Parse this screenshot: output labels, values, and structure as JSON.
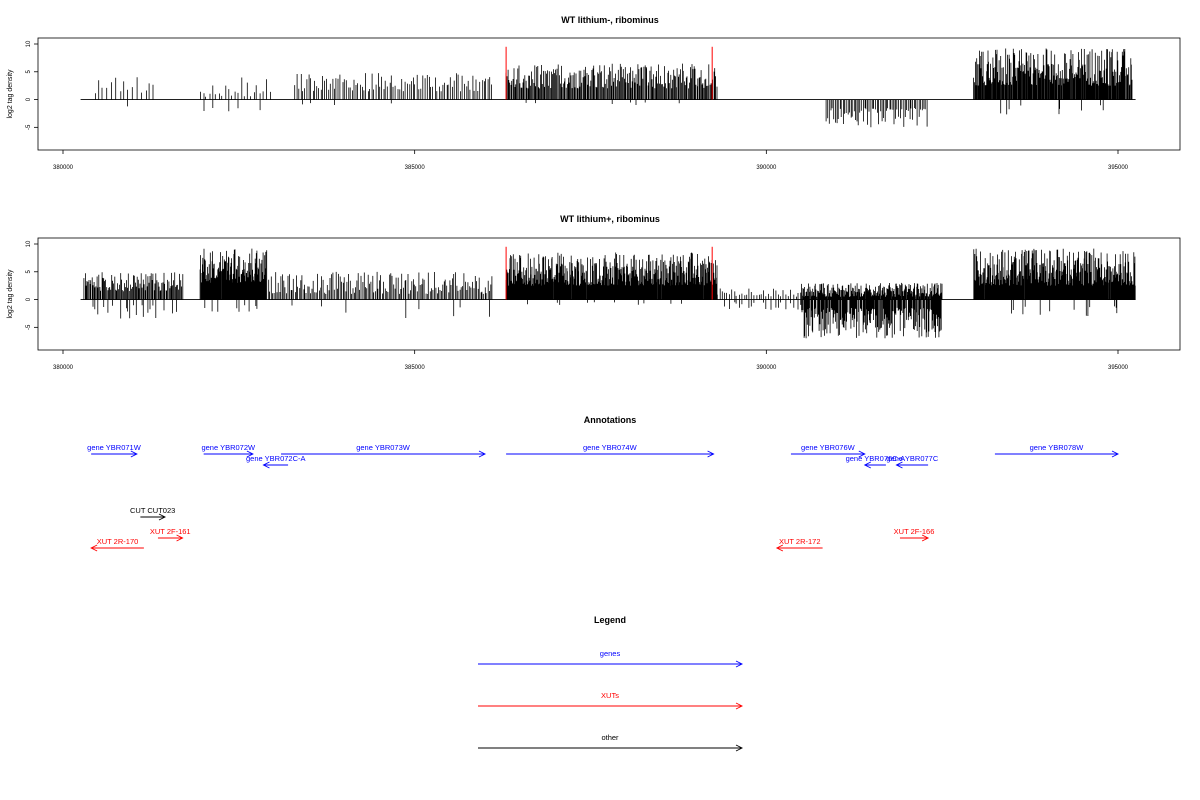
{
  "chart_data": [
    {
      "type": "bar",
      "title": "WT lithium-, ribominus",
      "ylabel": "log2 tag density",
      "xlim": [
        379500,
        395800
      ],
      "ylim": [
        -8,
        10
      ],
      "x_ticks": [
        380000,
        385000,
        390000,
        395000
      ],
      "x_tick_labels": [
        "380000",
        "385000",
        "390000",
        "395000"
      ],
      "y_ticks": [
        -5,
        0,
        5,
        10
      ],
      "y_tick_labels": [
        "-5",
        "0",
        "5",
        "10"
      ],
      "baseline": [
        380250,
        395250
      ],
      "marker_lines": {
        "color": "#ff0000",
        "x": [
          386300,
          389230
        ],
        "y": [
          0,
          9.5
        ]
      },
      "segments": [
        {
          "x": [
            380450,
            381300
          ],
          "pos": [
            0.5,
            4.5
          ],
          "neg": [
            -1,
            -3.5
          ],
          "neg_p": 0.15,
          "step": 60
        },
        {
          "x": [
            381950,
            382950
          ],
          "pos": [
            0.5,
            4
          ],
          "neg": [
            -1,
            -3
          ],
          "neg_p": 0.2,
          "step": 45
        },
        {
          "x": [
            383300,
            386100
          ],
          "pos": [
            1.5,
            4.8
          ],
          "neg": [
            -0.5,
            -1
          ],
          "neg_p": 0.02,
          "step": 28
        },
        {
          "x": [
            386300,
            389300
          ],
          "pos": [
            2,
            6.5
          ],
          "neg": [
            -0.5,
            -1
          ],
          "neg_p": 0.02,
          "step": 14
        },
        {
          "x": [
            390850,
            392300
          ],
          "pos": [
            0,
            0
          ],
          "neg": [
            -1.5,
            -5
          ],
          "neg_p": 1,
          "step": 22
        },
        {
          "x": [
            392950,
            395200
          ],
          "pos": [
            2.5,
            9.2
          ],
          "neg": [
            -1,
            -3
          ],
          "neg_p": 0.03,
          "step": 10
        }
      ]
    },
    {
      "type": "bar",
      "title": "WT lithium+, ribominus",
      "ylabel": "log2 tag density",
      "xlim": [
        379500,
        395800
      ],
      "ylim": [
        -8,
        10
      ],
      "x_ticks": [
        380000,
        385000,
        390000,
        395000
      ],
      "x_tick_labels": [
        "380000",
        "385000",
        "390000",
        "395000"
      ],
      "y_ticks": [
        -5,
        0,
        5,
        10
      ],
      "y_tick_labels": [
        "-5",
        "0",
        "5",
        "10"
      ],
      "baseline": [
        380250,
        395250
      ],
      "marker_lines": {
        "color": "#ff0000",
        "x": [
          386300,
          389230
        ],
        "y": [
          0,
          9.5
        ]
      },
      "segments": [
        {
          "x": [
            380300,
            381700
          ],
          "pos": [
            1.5,
            5
          ],
          "neg": [
            -1,
            -3.5
          ],
          "neg_p": 0.3,
          "step": 14
        },
        {
          "x": [
            381950,
            382900
          ],
          "pos": [
            3,
            9.2
          ],
          "neg": [
            -1,
            -2.5
          ],
          "neg_p": 0.05,
          "step": 8
        },
        {
          "x": [
            382900,
            386100
          ],
          "pos": [
            1,
            5
          ],
          "neg": [
            -1,
            -3.5
          ],
          "neg_p": 0.05,
          "step": 20
        },
        {
          "x": [
            386300,
            389300
          ],
          "pos": [
            2.5,
            8.5
          ],
          "neg": [
            -0.5,
            -1
          ],
          "neg_p": 0.02,
          "step": 8
        },
        {
          "x": [
            389300,
            390500
          ],
          "pos": [
            0.5,
            2
          ],
          "neg": [
            -0.5,
            -2
          ],
          "neg_p": 0.5,
          "step": 35
        },
        {
          "x": [
            390500,
            392500
          ],
          "pos": [
            0.5,
            3
          ],
          "neg": [
            -1.5,
            -7
          ],
          "neg_p": 0.85,
          "step": 9
        },
        {
          "x": [
            392950,
            395250
          ],
          "pos": [
            2.5,
            9.2
          ],
          "neg": [
            -1,
            -3.5
          ],
          "neg_p": 0.05,
          "step": 8
        }
      ]
    }
  ],
  "annotations": {
    "title": "Annotations",
    "items": [
      {
        "label": "gene YBR071W",
        "start": 380400,
        "end": 381050,
        "dir": "right",
        "color": "#0000ff",
        "row": 0
      },
      {
        "label": "gene YBR072W",
        "start": 382000,
        "end": 382700,
        "dir": "right",
        "color": "#0000ff",
        "row": 0
      },
      {
        "label": "gene YBR072C-A",
        "start": 382850,
        "end": 383200,
        "dir": "left",
        "color": "#0000ff",
        "row": 1
      },
      {
        "label": "gene YBR073W",
        "start": 383100,
        "end": 386000,
        "dir": "right",
        "color": "#0000ff",
        "row": 0
      },
      {
        "label": "gene YBR074W",
        "start": 386300,
        "end": 389250,
        "dir": "right",
        "color": "#0000ff",
        "row": 0
      },
      {
        "label": "gene YBR076W",
        "start": 390350,
        "end": 391400,
        "dir": "right",
        "color": "#0000ff",
        "row": 0
      },
      {
        "label": "gene YBR076C-A",
        "start": 391400,
        "end": 391700,
        "dir": "left",
        "color": "#0000ff",
        "row": 1
      },
      {
        "label": "gene YBR077C",
        "start": 391850,
        "end": 392300,
        "dir": "left",
        "color": "#0000ff",
        "row": 1
      },
      {
        "label": "gene YBR078W",
        "start": 393250,
        "end": 395000,
        "dir": "right",
        "color": "#0000ff",
        "row": 0
      },
      {
        "label": "CUT CUT023",
        "start": 381100,
        "end": 381450,
        "dir": "right",
        "color": "#000000",
        "row": 2
      },
      {
        "label": "XUT 2F-161",
        "start": 381350,
        "end": 381700,
        "dir": "right",
        "color": "#ff0000",
        "row": 3
      },
      {
        "label": "XUT 2R-170",
        "start": 380400,
        "end": 381150,
        "dir": "left",
        "color": "#ff0000",
        "row": 4
      },
      {
        "label": "XUT 2R-172",
        "start": 390150,
        "end": 390800,
        "dir": "left",
        "color": "#ff0000",
        "row": 4
      },
      {
        "label": "XUT 2F-166",
        "start": 391900,
        "end": 392300,
        "dir": "right",
        "color": "#ff0000",
        "row": 3
      }
    ]
  },
  "legend": {
    "title": "Legend",
    "items": [
      {
        "label": "genes",
        "color": "#0000ff"
      },
      {
        "label": "XUTs",
        "color": "#ff0000"
      },
      {
        "label": "other",
        "color": "#000000"
      }
    ]
  }
}
